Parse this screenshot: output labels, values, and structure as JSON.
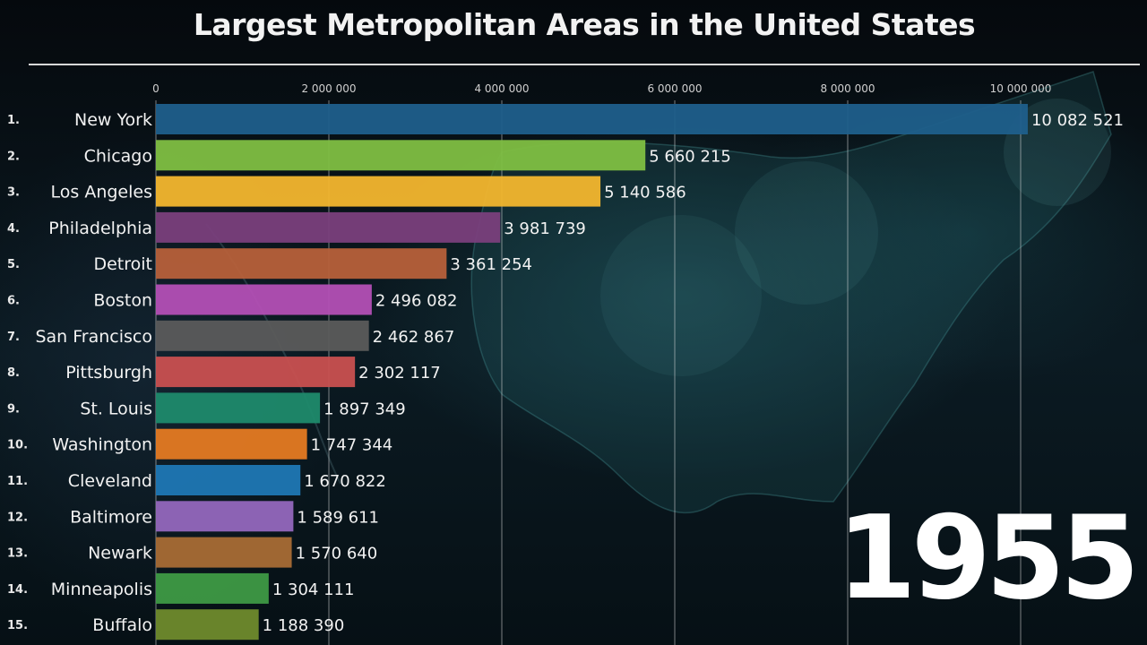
{
  "title": "Largest Metropolitan Areas in the United States",
  "year": "1955",
  "chart_data": {
    "type": "bar",
    "orientation": "horizontal",
    "title": "Largest Metropolitan Areas in the United States",
    "xlim": [
      0,
      10000000
    ],
    "grid": true,
    "ticks": [
      0,
      2000000,
      4000000,
      6000000,
      8000000,
      10000000
    ],
    "tick_labels": [
      "0",
      "2 000 000",
      "4 000 000",
      "6 000 000",
      "8 000 000",
      "10 000 000"
    ],
    "ranks": [
      "1.",
      "2.",
      "3.",
      "4.",
      "5.",
      "6.",
      "7.",
      "8.",
      "9.",
      "10.",
      "11.",
      "12.",
      "13.",
      "14.",
      "15."
    ],
    "categories": [
      "New York",
      "Chicago",
      "Los Angeles",
      "Philadelphia",
      "Detroit",
      "Boston",
      "San Francisco",
      "Pittsburgh",
      "St. Louis",
      "Washington",
      "Cleveland",
      "Baltimore",
      "Newark",
      "Minneapolis",
      "Buffalo"
    ],
    "values": [
      10082521,
      5660215,
      5140586,
      3981739,
      3361254,
      2496082,
      2462867,
      2302117,
      1897349,
      1747344,
      1670822,
      1589611,
      1570640,
      1304111,
      1188390
    ],
    "value_labels": [
      "10 082 521",
      "5 660 215",
      "5 140 586",
      "3 981 739",
      "3 361 254",
      "2 496 082",
      "2 462 867",
      "2 302 117",
      "1 897 349",
      "1 747 344",
      "1 670 822",
      "1 589 611",
      "1 570 640",
      "1 304 111",
      "1 188 390"
    ],
    "colors": [
      "#1f5f8b",
      "#7fbf42",
      "#f3b62e",
      "#7a3f7c",
      "#b7603a",
      "#b34fb5",
      "#5b5b5b",
      "#c95050",
      "#1f8a6b",
      "#e57a22",
      "#1f77b4",
      "#9467bd",
      "#a86b35",
      "#3e9a45",
      "#6f8b2c"
    ]
  }
}
